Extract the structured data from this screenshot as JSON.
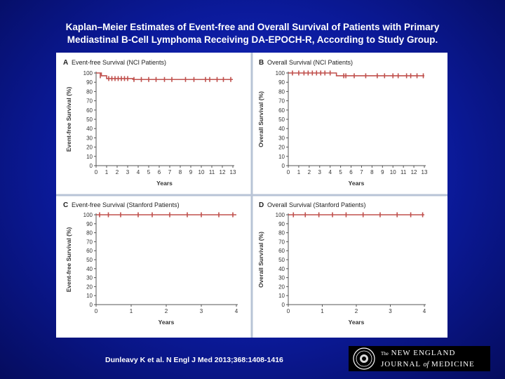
{
  "slide": {
    "title_line1": "Kaplan–Meier Estimates of Event-free and Overall Survival of Patients with Primary",
    "title_line2": "Mediastinal B-Cell Lymphoma Receiving DA-EPOCH-R, According to Study Group.",
    "citation": "Dunleavy K et al. N Engl J Med 2013;368:1408-1416",
    "logo": {
      "the": "The",
      "new_england": "NEW ENGLAND",
      "journal": "JOURNAL",
      "of": "of",
      "medicine": "MEDICINE"
    }
  },
  "colors": {
    "background": "#0b1a9a",
    "curve": "#c0504d",
    "panel_divider": "#b8c4d6",
    "axis": "#555555"
  },
  "chart_data": [
    {
      "type": "line",
      "letter": "A",
      "title": "Event-free Survival (NCI Patients)",
      "xlabel": "Years",
      "ylabel": "Event-free Survival (%)",
      "xlim": [
        0,
        13
      ],
      "ylim": [
        0,
        100
      ],
      "xticks": [
        0,
        1,
        2,
        3,
        4,
        5,
        6,
        7,
        8,
        9,
        10,
        11,
        12,
        13
      ],
      "yticks": [
        0,
        10,
        20,
        30,
        40,
        50,
        60,
        70,
        80,
        90,
        100
      ],
      "series": [
        {
          "step": [
            [
              0,
              100
            ],
            [
              0.5,
              97
            ],
            [
              1,
              94
            ],
            [
              3.3,
              94
            ],
            [
              3.5,
              93
            ],
            [
              13,
              93
            ]
          ],
          "censored": [
            [
              0.4,
              97
            ],
            [
              1.2,
              94
            ],
            [
              1.5,
              94
            ],
            [
              1.8,
              94
            ],
            [
              2.1,
              94
            ],
            [
              2.4,
              94
            ],
            [
              2.7,
              94
            ],
            [
              3,
              94
            ],
            [
              3.6,
              93
            ],
            [
              4.3,
              93
            ],
            [
              5,
              93
            ],
            [
              5.7,
              93
            ],
            [
              6.5,
              93
            ],
            [
              7.2,
              93
            ],
            [
              8.5,
              93
            ],
            [
              9.3,
              93
            ],
            [
              10.4,
              93
            ],
            [
              10.8,
              93
            ],
            [
              11.5,
              93
            ],
            [
              12.1,
              93
            ],
            [
              12.8,
              93
            ]
          ]
        }
      ]
    },
    {
      "type": "line",
      "letter": "B",
      "title": "Overall Survival (NCI Patients)",
      "xlabel": "Years",
      "ylabel": "Overall Survival (%)",
      "xlim": [
        0,
        13
      ],
      "ylim": [
        0,
        100
      ],
      "xticks": [
        0,
        1,
        2,
        3,
        4,
        5,
        6,
        7,
        8,
        9,
        10,
        11,
        12,
        13
      ],
      "yticks": [
        0,
        10,
        20,
        30,
        40,
        50,
        60,
        70,
        80,
        90,
        100
      ],
      "series": [
        {
          "step": [
            [
              0,
              100
            ],
            [
              4.6,
              100
            ],
            [
              4.6,
              97
            ],
            [
              13,
              97
            ]
          ],
          "censored": [
            [
              0.4,
              100
            ],
            [
              1,
              100
            ],
            [
              1.5,
              100
            ],
            [
              1.9,
              100
            ],
            [
              2.3,
              100
            ],
            [
              2.7,
              100
            ],
            [
              3.1,
              100
            ],
            [
              3.5,
              100
            ],
            [
              4,
              100
            ],
            [
              5.3,
              97
            ],
            [
              5.5,
              97
            ],
            [
              6.3,
              97
            ],
            [
              7.4,
              97
            ],
            [
              8.5,
              97
            ],
            [
              9.2,
              97
            ],
            [
              10,
              97
            ],
            [
              10.5,
              97
            ],
            [
              11.3,
              97
            ],
            [
              11.7,
              97
            ],
            [
              12.3,
              97
            ],
            [
              12.9,
              97
            ]
          ]
        }
      ]
    },
    {
      "type": "line",
      "letter": "C",
      "title": "Event-free Survival (Stanford Patients)",
      "xlabel": "Years",
      "ylabel": "Event-free Survival (%)",
      "xlim": [
        0,
        4
      ],
      "ylim": [
        0,
        100
      ],
      "xticks": [
        0,
        1,
        2,
        3,
        4
      ],
      "yticks": [
        0,
        10,
        20,
        30,
        40,
        50,
        60,
        70,
        80,
        90,
        100
      ],
      "series": [
        {
          "step": [
            [
              0,
              100
            ],
            [
              4,
              100
            ]
          ],
          "censored": [
            [
              0.1,
              100
            ],
            [
              0.35,
              100
            ],
            [
              0.7,
              100
            ],
            [
              1.2,
              100
            ],
            [
              1.6,
              100
            ],
            [
              2.1,
              100
            ],
            [
              2.6,
              100
            ],
            [
              3,
              100
            ],
            [
              3.5,
              100
            ],
            [
              3.9,
              100
            ]
          ]
        }
      ]
    },
    {
      "type": "line",
      "letter": "D",
      "title": "Overall Survival (Stanford Patients)",
      "xlabel": "Years",
      "ylabel": "Overall Survival (%)",
      "xlim": [
        0,
        4
      ],
      "ylim": [
        0,
        100
      ],
      "xticks": [
        0,
        1,
        2,
        3,
        4
      ],
      "yticks": [
        0,
        10,
        20,
        30,
        40,
        50,
        60,
        70,
        80,
        90,
        100
      ],
      "series": [
        {
          "step": [
            [
              0,
              100
            ],
            [
              4,
              100
            ]
          ],
          "censored": [
            [
              0.15,
              100
            ],
            [
              0.5,
              100
            ],
            [
              0.9,
              100
            ],
            [
              1.3,
              100
            ],
            [
              1.7,
              100
            ],
            [
              2.2,
              100
            ],
            [
              2.7,
              100
            ],
            [
              3.2,
              100
            ],
            [
              3.6,
              100
            ],
            [
              3.95,
              100
            ]
          ]
        }
      ]
    }
  ]
}
